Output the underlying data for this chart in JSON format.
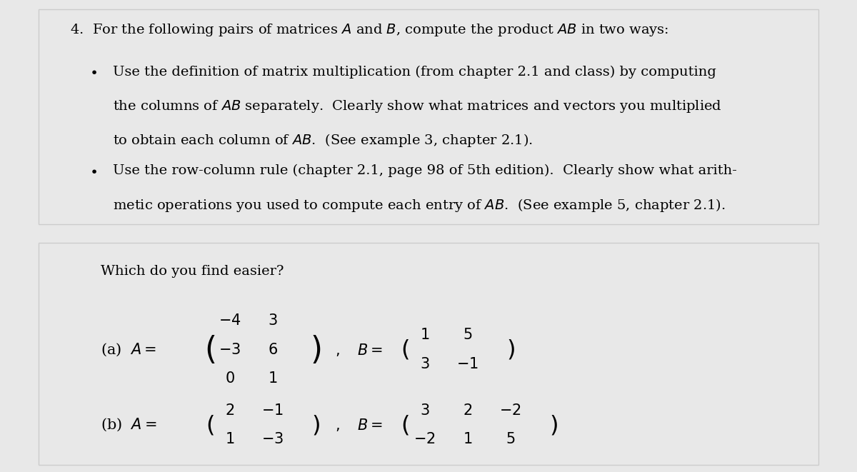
{
  "background_color": "#e8e8e8",
  "top_box_color": "#ffffff",
  "bottom_box_color": "#ffffff",
  "title_text": "4.  For the following pairs of matrices $A$ and $B$, compute the product $AB$ in two ways:",
  "bullet1_line1": "Use the definition of matrix multiplication (from chapter 2.1 and class) by computing",
  "bullet1_line2": "the columns of $AB$ separately.  Clearly show what matrices and vectors you multiplied",
  "bullet1_line3": "to obtain each column of $AB$.  (See example 3, chapter 2.1).",
  "bullet2_line1": "Use the row-column rule (chapter 2.1, page 98 of 5th edition).  Clearly show what arith-",
  "bullet2_line2": "metic operations you used to compute each entry of $AB$.  (See example 5, chapter 2.1).",
  "which_text": "Which do you find easier?",
  "font_size": 14,
  "font_size_matrix": 15
}
